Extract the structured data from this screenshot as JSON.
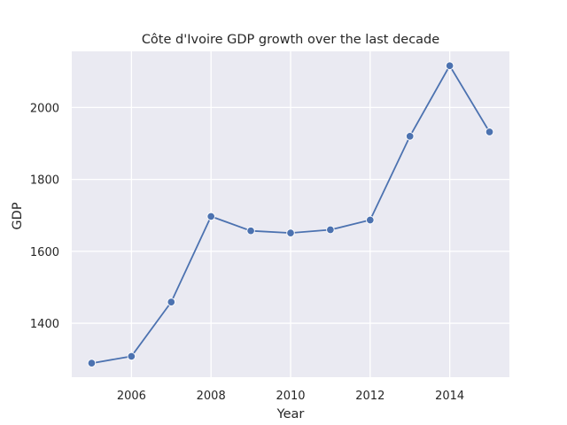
{
  "chart_data": {
    "type": "line",
    "title": "Côte d'Ivoire GDP growth over the last decade",
    "xlabel": "Year",
    "ylabel": "GDP",
    "x": [
      2005,
      2006,
      2007,
      2008,
      2009,
      2010,
      2011,
      2012,
      2013,
      2014,
      2015
    ],
    "series": [
      {
        "values": [
          1289,
          1308,
          1459,
          1697,
          1657,
          1651,
          1660,
          1687,
          1920,
          2116,
          1932
        ]
      }
    ],
    "xlim": [
      2004.5,
      2015.5
    ],
    "ylim": [
      1250,
      2156
    ],
    "xticks": [
      2006,
      2008,
      2010,
      2012,
      2014
    ],
    "yticks": [
      1400,
      1600,
      1800,
      2000
    ],
    "grid": true,
    "colors": {
      "background": "#eaeaf2",
      "grid": "#ffffff",
      "line": "#4c72b0"
    }
  }
}
